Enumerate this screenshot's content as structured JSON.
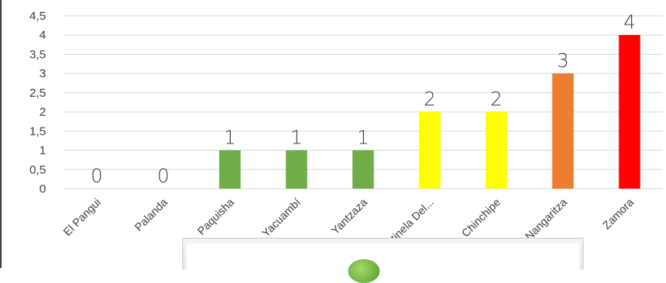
{
  "chart_data": {
    "type": "bar",
    "categories": [
      "El Pangui",
      "Palanda",
      "Paquisha",
      "Yacuambí",
      "Yantzaza",
      "Centinela Del...",
      "Chinchipe",
      "Nangaritza",
      "Zamora"
    ],
    "values": [
      0,
      0,
      1,
      1,
      1,
      2,
      2,
      3,
      4
    ],
    "bar_colors": [
      "#70ad47",
      "#70ad47",
      "#70ad47",
      "#70ad47",
      "#70ad47",
      "#ffff00",
      "#ffff00",
      "#ed7d31",
      "#ff0000"
    ],
    "data_labels": [
      "0",
      "0",
      "1",
      "1",
      "1",
      "2",
      "2",
      "3",
      "4"
    ],
    "y_ticks": [
      "0",
      "0,5",
      "1",
      "1,5",
      "2",
      "2,5",
      "3",
      "3,5",
      "4",
      "4,5"
    ],
    "ylim": [
      0,
      4.5
    ],
    "grid": true,
    "title": "",
    "xlabel": "",
    "ylabel": ""
  }
}
